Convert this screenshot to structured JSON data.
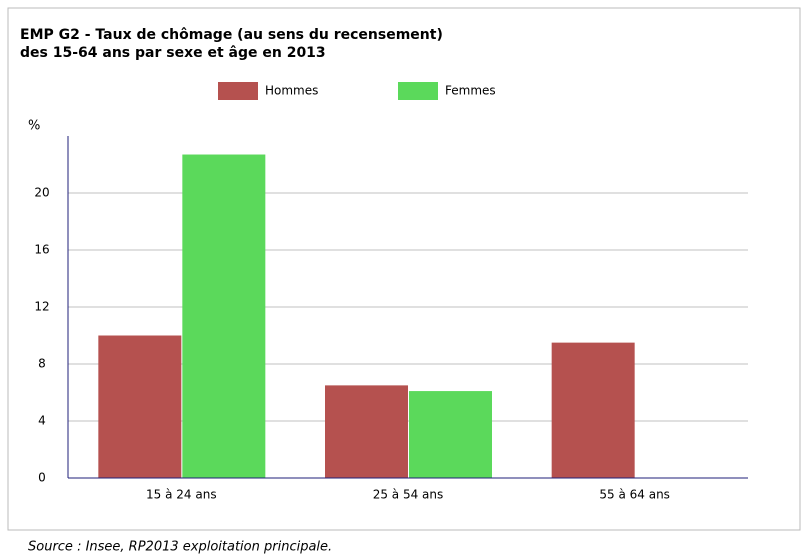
{
  "chart_data": {
    "type": "bar",
    "title": [
      "EMP G2 - Taux de chômage (au sens du recensement)",
      "des 15-64 ans par sexe et âge en 2013"
    ],
    "ylabel": "%",
    "source": "Source : Insee, RP2013 exploitation principale.",
    "categories": [
      "15 à 24 ans",
      "25 à 54 ans",
      "55 à 64 ans"
    ],
    "series": [
      {
        "name": "Hommes",
        "color": "#b5514f",
        "values": [
          10.0,
          6.5,
          9.5
        ]
      },
      {
        "name": "Femmes",
        "color": "#5bd95b",
        "values": [
          22.7,
          6.1,
          0
        ]
      }
    ],
    "ylim": [
      0,
      24
    ],
    "yticks": [
      0,
      4,
      8,
      12,
      16,
      20
    ],
    "grid": true
  }
}
